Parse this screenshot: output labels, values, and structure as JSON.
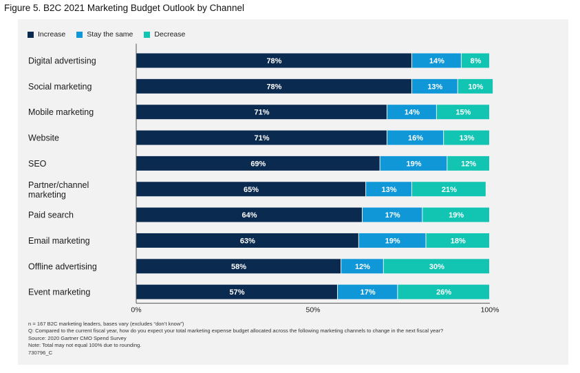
{
  "title": "Figure 5. B2C 2021 Marketing Budget Outlook by Channel",
  "colors": {
    "Increase": "#0b2a50",
    "Stay the same": "#0f97d8",
    "Decrease": "#12c5b3",
    "panel": "#f2f2f2"
  },
  "chart_data": {
    "type": "bar",
    "orientation": "horizontal",
    "stacked": true,
    "categories": [
      "Digital advertising",
      "Social marketing",
      "Mobile marketing",
      "Website",
      "SEO",
      "Partner/channel marketing",
      "Paid search",
      "Email marketing",
      "Offline advertising",
      "Event marketing"
    ],
    "series": [
      {
        "name": "Increase",
        "values": [
          78,
          78,
          71,
          71,
          69,
          65,
          64,
          63,
          58,
          57
        ]
      },
      {
        "name": "Stay the same",
        "values": [
          14,
          13,
          14,
          16,
          19,
          13,
          17,
          19,
          12,
          17
        ]
      },
      {
        "name": "Decrease",
        "values": [
          8,
          10,
          15,
          13,
          12,
          21,
          19,
          18,
          30,
          26
        ]
      }
    ],
    "value_suffix": "%",
    "xlim": [
      0,
      100
    ],
    "xticks": [
      "0%",
      "50%",
      "100%"
    ],
    "legend_position": "top-left",
    "grid": false
  },
  "notes": [
    "n = 167 B2C marketing leaders, bases vary (excludes “don’t know”)",
    "Q: Compared to the current fiscal year, how do you expect your total marketing expense budget allocated across the following marketing channels to change in the next fiscal year?",
    "Source: 2020 Gartner CMO Spend Survey",
    "Note: Total may not equal 100% due to rounding.",
    "730796_C"
  ]
}
